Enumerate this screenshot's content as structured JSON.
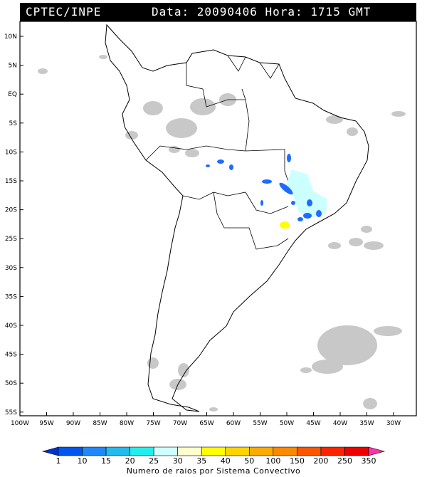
{
  "header": {
    "source": "CPTEC/INPE",
    "date_text": "Data: 20090406 Hora: 1715 GMT"
  },
  "lat_ticks": [
    "10N",
    "5N",
    "EQ",
    "5S",
    "10S",
    "15S",
    "20S",
    "25S",
    "30S",
    "35S",
    "40S",
    "45S",
    "50S",
    "55S"
  ],
  "lon_ticks": [
    "100W",
    "95W",
    "90W",
    "85W",
    "80W",
    "75W",
    "70W",
    "65W",
    "60W",
    "55W",
    "50W",
    "45W",
    "40W",
    "35W",
    "30W"
  ],
  "colorbar": {
    "labels": [
      "1",
      "10",
      "15",
      "20",
      "25",
      "30",
      "35",
      "40",
      "50",
      "100",
      "150",
      "200",
      "250",
      "350"
    ],
    "colors": [
      "#0033cc",
      "#0055ee",
      "#1e88ff",
      "#22bbee",
      "#22eeee",
      "#ccffff",
      "#ffffcc",
      "#ffff00",
      "#ffd400",
      "#ffaa00",
      "#ff8800",
      "#ff5500",
      "#ff2200",
      "#ee0000",
      "#ff33aa"
    ],
    "caption": "Numero de raios por Sistema Convectivo"
  },
  "colors": {
    "cloud": "#c8c8c8",
    "coast": "#000000",
    "blue_cell": "#1e6cff",
    "cyan_region": "#ccffff",
    "yellow_cell": "#ffff00"
  }
}
